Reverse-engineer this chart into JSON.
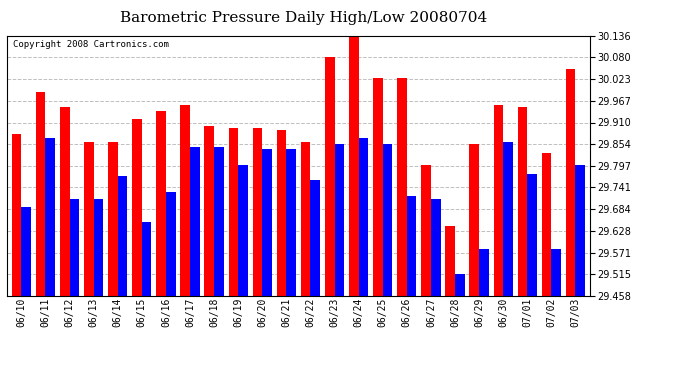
{
  "title": "Barometric Pressure Daily High/Low 20080704",
  "copyright": "Copyright 2008 Cartronics.com",
  "dates": [
    "06/10",
    "06/11",
    "06/12",
    "06/13",
    "06/14",
    "06/15",
    "06/16",
    "06/17",
    "06/18",
    "06/19",
    "06/20",
    "06/21",
    "06/22",
    "06/23",
    "06/24",
    "06/25",
    "06/26",
    "06/27",
    "06/28",
    "06/29",
    "06/30",
    "07/01",
    "07/02",
    "07/03"
  ],
  "highs": [
    29.88,
    29.99,
    29.95,
    29.86,
    29.86,
    29.92,
    29.94,
    29.955,
    29.9,
    29.895,
    29.895,
    29.89,
    29.86,
    30.08,
    30.136,
    30.025,
    30.025,
    29.8,
    29.64,
    29.855,
    29.955,
    29.95,
    29.83,
    30.05
  ],
  "lows": [
    29.69,
    29.87,
    29.71,
    29.71,
    29.77,
    29.65,
    29.73,
    29.845,
    29.845,
    29.8,
    29.84,
    29.84,
    29.76,
    29.855,
    29.87,
    29.855,
    29.72,
    29.71,
    29.515,
    29.58,
    29.86,
    29.775,
    29.58,
    29.8
  ],
  "ylim": [
    29.458,
    30.136
  ],
  "yticks": [
    29.458,
    29.515,
    29.571,
    29.628,
    29.684,
    29.741,
    29.797,
    29.854,
    29.91,
    29.967,
    30.023,
    30.08,
    30.136
  ],
  "bar_width": 0.4,
  "high_color": "#FF0000",
  "low_color": "#0000FF",
  "bg_color": "#FFFFFF",
  "grid_color": "#C0C0C0",
  "title_fontsize": 11,
  "copyright_fontsize": 6.5
}
